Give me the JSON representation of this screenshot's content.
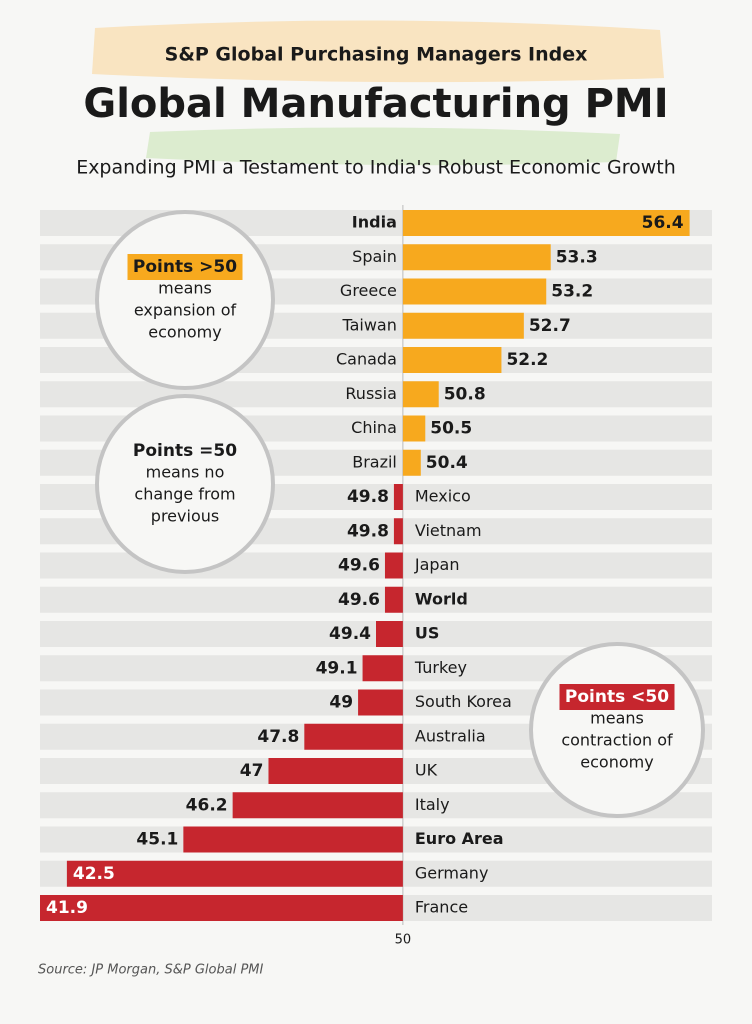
{
  "chart_data": {
    "type": "bar",
    "orientation": "horizontal",
    "kicker": "S&P Global Purchasing Managers Index",
    "title": "Global Manufacturing PMI",
    "subtitle": "Expanding PMI a Testament to India's Robust Economic Growth",
    "categories": [
      "India",
      "Spain",
      "Greece",
      "Taiwan",
      "Canada",
      "Russia",
      "China",
      "Brazil",
      "Mexico",
      "Vietnam",
      "Japan",
      "World",
      "US",
      "Turkey",
      "South Korea",
      "Australia",
      "UK",
      "Italy",
      "Euro Area",
      "Germany",
      "France"
    ],
    "values": [
      56.4,
      53.3,
      53.2,
      52.7,
      52.2,
      50.8,
      50.5,
      50.4,
      49.8,
      49.8,
      49.6,
      49.6,
      49.4,
      49.1,
      49,
      47.8,
      47,
      46.2,
      45.1,
      42.5,
      41.9
    ],
    "bold": [
      true,
      false,
      false,
      false,
      false,
      false,
      false,
      false,
      false,
      false,
      false,
      true,
      true,
      false,
      false,
      false,
      false,
      false,
      true,
      false,
      false
    ],
    "baseline": 50,
    "color_above": "#f7a91e",
    "color_below": "#c6262e",
    "xlim": [
      41.9,
      56.9
    ],
    "xticks": [
      50
    ],
    "annotations": [
      {
        "label": "Points >50",
        "text": [
          "means",
          "expansion of",
          "economy"
        ]
      },
      {
        "label": "Points =50",
        "text": [
          "means no",
          "change from",
          "previous"
        ]
      },
      {
        "label": "Points <50",
        "text": [
          "means",
          "contraction of",
          "economy"
        ]
      }
    ],
    "source": "Source: JP Morgan, S&P Global PMI"
  }
}
